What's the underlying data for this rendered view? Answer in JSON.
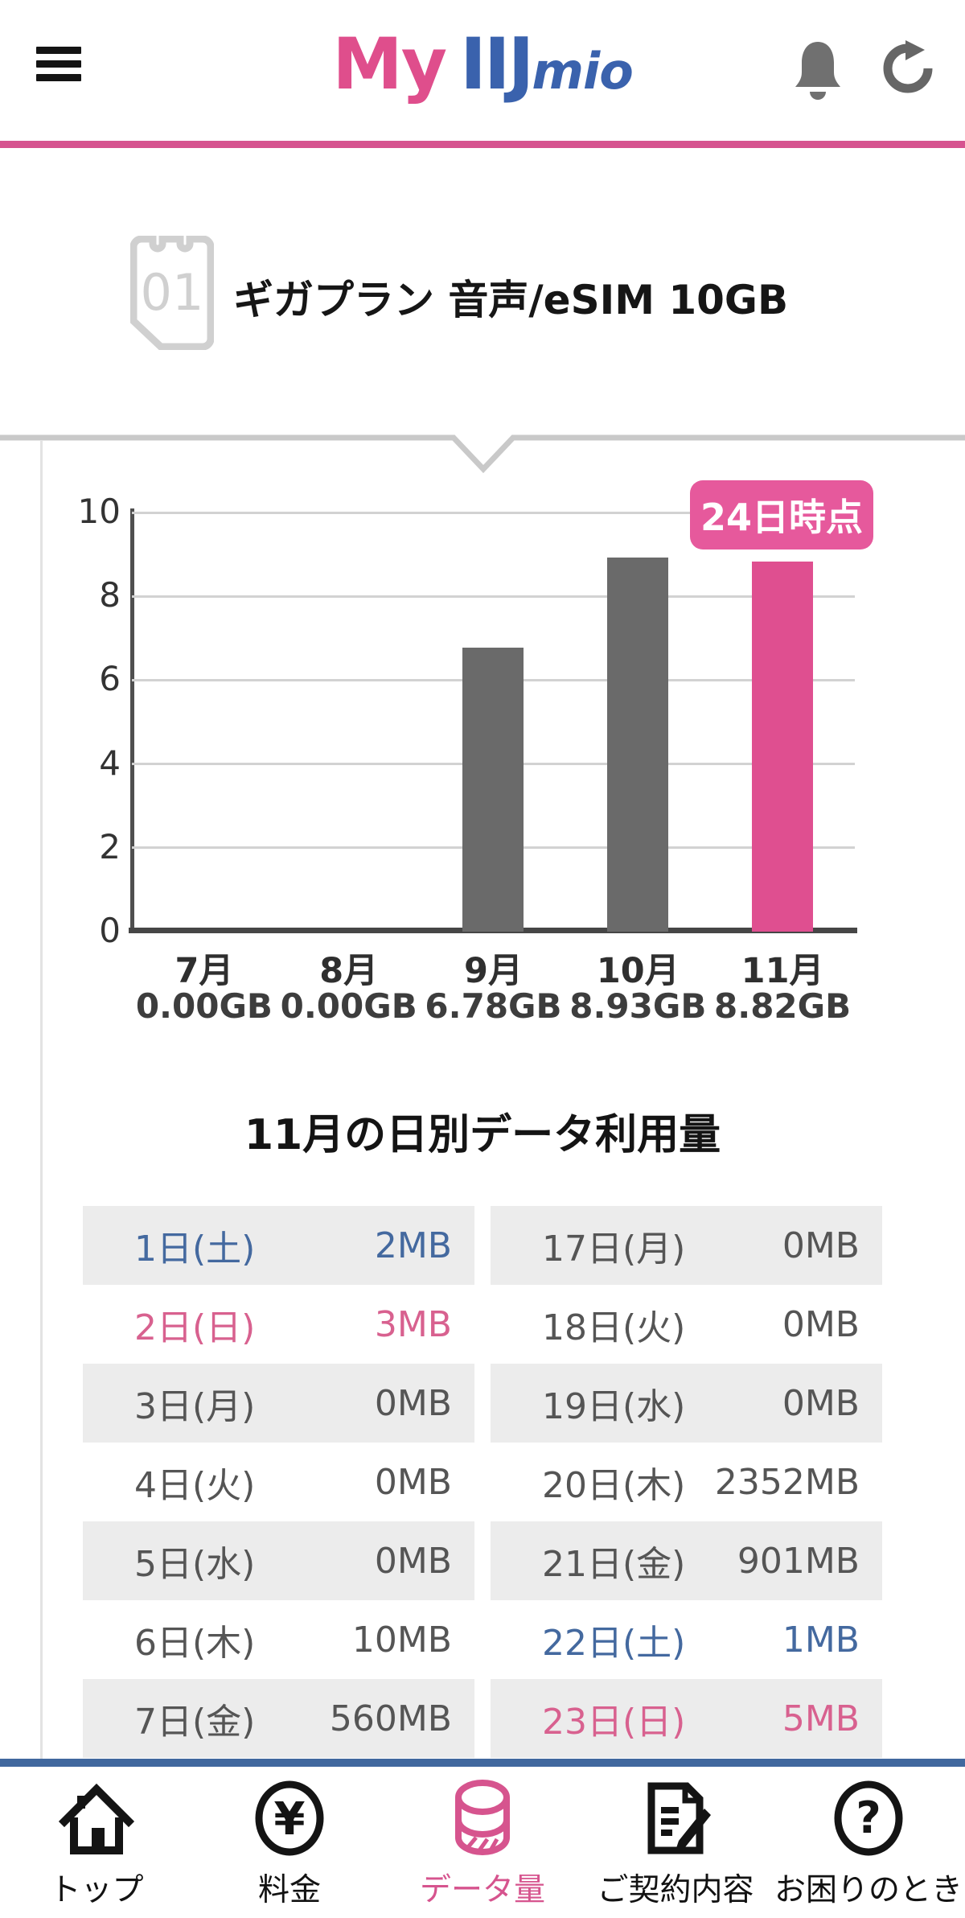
{
  "header": {
    "logo_my": "My",
    "logo_iij": "IIJ",
    "logo_mio": "mio"
  },
  "plan": {
    "sim_number": "01",
    "title": "ギガプラン 音声/eSIM 10GB"
  },
  "chart_data": {
    "type": "bar",
    "categories": [
      "7月",
      "8月",
      "9月",
      "10月",
      "11月"
    ],
    "values": [
      0,
      0,
      6.78,
      8.93,
      8.82
    ],
    "value_labels": [
      "0.00GB",
      "0.00GB",
      "6.78GB",
      "8.93GB",
      "8.82GB"
    ],
    "annotation": "24日時点",
    "ylim": [
      0,
      10
    ],
    "yticks": [
      0,
      2,
      4,
      6,
      8,
      10
    ],
    "grid": true,
    "legend_position": "none",
    "bar_color": "#6a6a6a",
    "highlight_index": 4,
    "highlight_color": "#df4f90",
    "xlabel": "",
    "ylabel": ""
  },
  "daily": {
    "title": "11月の日別データ利用量",
    "left": [
      {
        "day": "1日(土)",
        "value": "2MB",
        "type": "sat"
      },
      {
        "day": "2日(日)",
        "value": "3MB",
        "type": "sun"
      },
      {
        "day": "3日(月)",
        "value": "0MB",
        "type": "wd"
      },
      {
        "day": "4日(火)",
        "value": "0MB",
        "type": "wd"
      },
      {
        "day": "5日(水)",
        "value": "0MB",
        "type": "wd"
      },
      {
        "day": "6日(木)",
        "value": "10MB",
        "type": "wd"
      },
      {
        "day": "7日(金)",
        "value": "560MB",
        "type": "wd"
      }
    ],
    "right": [
      {
        "day": "17日(月)",
        "value": "0MB",
        "type": "wd"
      },
      {
        "day": "18日(火)",
        "value": "0MB",
        "type": "wd"
      },
      {
        "day": "19日(水)",
        "value": "0MB",
        "type": "wd"
      },
      {
        "day": "20日(木)",
        "value": "2352MB",
        "type": "wd"
      },
      {
        "day": "21日(金)",
        "value": "901MB",
        "type": "wd"
      },
      {
        "day": "22日(土)",
        "value": "1MB",
        "type": "sat"
      },
      {
        "day": "23日(日)",
        "value": "5MB",
        "type": "sun"
      }
    ]
  },
  "nav": {
    "items": [
      {
        "label": "トップ",
        "icon": "home-icon",
        "active": false
      },
      {
        "label": "料金",
        "icon": "yen-icon",
        "active": false
      },
      {
        "label": "データ量",
        "icon": "data-coins-icon",
        "active": true
      },
      {
        "label": "ご契約内容",
        "icon": "contract-icon",
        "active": false
      },
      {
        "label": "お困りのとき",
        "icon": "help-icon",
        "active": false
      }
    ]
  },
  "colors": {
    "brand_pink": "#d6538f",
    "brand_blue": "#3a62ad",
    "nav_divider_blue": "#41689e",
    "table_stripe": "#ececec",
    "saturday": "#44699f",
    "sunday": "#d8618f"
  }
}
